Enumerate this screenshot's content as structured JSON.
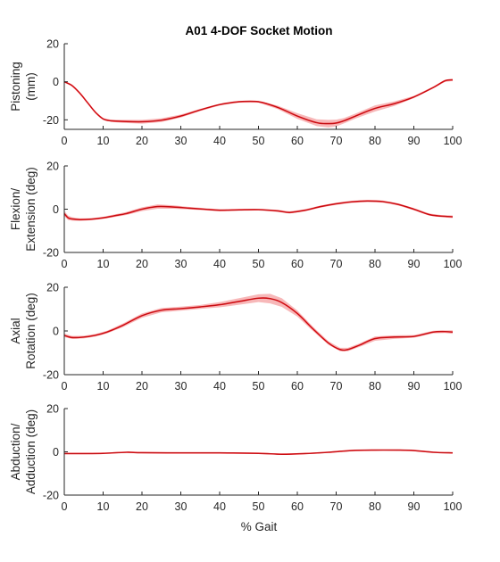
{
  "title": "A01 4-DOF Socket Motion",
  "colors": {
    "mean_line": "#e8141b",
    "band": "#f7b8b9",
    "inner_line": "#6b0000",
    "axis": "#262626"
  },
  "chart_data": [
    {
      "type": "line",
      "title": "A01 4-DOF Socket Motion",
      "ylabel": [
        "Pistoning",
        "(mm)"
      ],
      "xlabel": "",
      "xlim": [
        0,
        100
      ],
      "ylim": [
        -25,
        20
      ],
      "yticks": [
        20,
        0,
        -20
      ],
      "xticks": [
        0,
        10,
        20,
        30,
        40,
        50,
        60,
        70,
        80,
        90,
        100
      ],
      "x": [
        0,
        2,
        4,
        6,
        8,
        10,
        12,
        15,
        20,
        25,
        30,
        35,
        40,
        45,
        50,
        55,
        60,
        65,
        68,
        70,
        72,
        75,
        80,
        85,
        90,
        95,
        98,
        100
      ],
      "series": [
        {
          "values": [
            0,
            -2,
            -6,
            -11,
            -16,
            -19.5,
            -20.5,
            -20.8,
            -21,
            -20.2,
            -18,
            -14.8,
            -12,
            -10.5,
            -10.5,
            -13.5,
            -18,
            -21.5,
            -22,
            -21.7,
            -20.5,
            -18,
            -14,
            -11.5,
            -8,
            -3,
            0.5,
            1
          ],
          "band": [
            0.3,
            0.3,
            0.3,
            0.3,
            0.4,
            0.5,
            0.6,
            0.8,
            1.0,
            1.0,
            0.8,
            0.6,
            0.5,
            0.5,
            0.5,
            0.9,
            1.5,
            1.8,
            2.0,
            1.8,
            1.4,
            1.3,
            1.6,
            1.2,
            0.6,
            0.5,
            0.6,
            0.6
          ]
        }
      ],
      "grid": false
    },
    {
      "type": "line",
      "ylabel": [
        "Flexion/",
        "Extension (deg)"
      ],
      "xlabel": "",
      "xlim": [
        0,
        100
      ],
      "ylim": [
        -20,
        20
      ],
      "yticks": [
        20,
        0,
        -20
      ],
      "xticks": [
        0,
        10,
        20,
        30,
        40,
        50,
        60,
        70,
        80,
        90,
        100
      ],
      "x": [
        0,
        1,
        2,
        4,
        7,
        10,
        13,
        16,
        20,
        24,
        28,
        32,
        36,
        40,
        45,
        50,
        55,
        58,
        62,
        66,
        70,
        74,
        78,
        82,
        86,
        90,
        94,
        97,
        100
      ],
      "series": [
        {
          "values": [
            -2,
            -4,
            -4.5,
            -4.8,
            -4.6,
            -4,
            -3,
            -2,
            0,
            1.2,
            1,
            0.5,
            0,
            -0.5,
            -0.3,
            -0.2,
            -0.8,
            -1.5,
            -0.5,
            1.2,
            2.5,
            3.4,
            3.8,
            3.5,
            2.2,
            0,
            -2.5,
            -3.2,
            -3.5
          ],
          "band": [
            1.2,
            1.0,
            0.8,
            0.6,
            0.5,
            0.5,
            0.6,
            0.7,
            0.9,
            1.0,
            0.8,
            0.6,
            0.5,
            0.5,
            0.4,
            0.4,
            0.5,
            0.5,
            0.5,
            0.5,
            0.5,
            0.5,
            0.5,
            0.5,
            0.5,
            0.5,
            0.5,
            0.5,
            0.6
          ]
        }
      ],
      "grid": false
    },
    {
      "type": "line",
      "ylabel": [
        "Axial",
        "Rotation (deg)"
      ],
      "xlabel": "",
      "xlim": [
        0,
        100
      ],
      "ylim": [
        -20,
        20
      ],
      "yticks": [
        20,
        0,
        -20
      ],
      "xticks": [
        0,
        10,
        20,
        30,
        40,
        50,
        60,
        70,
        80,
        90,
        100
      ],
      "x": [
        0,
        2,
        5,
        8,
        11,
        15,
        20,
        25,
        30,
        35,
        40,
        45,
        50,
        53,
        56,
        60,
        64,
        68,
        71,
        73,
        76,
        80,
        85,
        90,
        95,
        98,
        100
      ],
      "series": [
        {
          "values": [
            -2,
            -3,
            -2.8,
            -2,
            -0.5,
            2.5,
            7,
            9.5,
            10.2,
            11,
            12,
            13.5,
            15,
            14.8,
            13,
            8,
            1,
            -5.5,
            -8.5,
            -8.5,
            -6.5,
            -3.5,
            -2.8,
            -2.5,
            -0.5,
            -0.3,
            -0.5
          ],
          "band": [
            0.8,
            0.7,
            0.6,
            0.6,
            0.6,
            0.8,
            1.0,
            1.0,
            0.9,
            0.9,
            1.2,
            1.5,
            1.8,
            2.2,
            2.0,
            1.4,
            1.0,
            0.8,
            0.8,
            0.8,
            0.8,
            1.0,
            0.8,
            0.6,
            0.6,
            0.6,
            0.8
          ]
        }
      ],
      "grid": false
    },
    {
      "type": "line",
      "ylabel": [
        "Abduction/",
        "Adduction (deg)"
      ],
      "xlabel": "% Gait",
      "xlim": [
        0,
        100
      ],
      "ylim": [
        -20,
        20
      ],
      "yticks": [
        20,
        0,
        -20
      ],
      "xticks": [
        0,
        10,
        20,
        30,
        40,
        50,
        60,
        70,
        80,
        90,
        100
      ],
      "x": [
        0,
        5,
        10,
        16,
        20,
        30,
        40,
        50,
        56,
        62,
        68,
        74,
        80,
        86,
        90,
        95,
        100
      ],
      "series": [
        {
          "values": [
            -0.8,
            -0.8,
            -0.7,
            -0.2,
            -0.4,
            -0.5,
            -0.5,
            -0.7,
            -1.1,
            -0.8,
            -0.2,
            0.6,
            0.8,
            0.8,
            0.6,
            -0.2,
            -0.5
          ],
          "band": [
            0.3,
            0.3,
            0.3,
            0.3,
            0.3,
            0.3,
            0.3,
            0.3,
            0.3,
            0.3,
            0.3,
            0.3,
            0.3,
            0.3,
            0.3,
            0.3,
            0.3
          ]
        }
      ],
      "grid": false
    }
  ]
}
